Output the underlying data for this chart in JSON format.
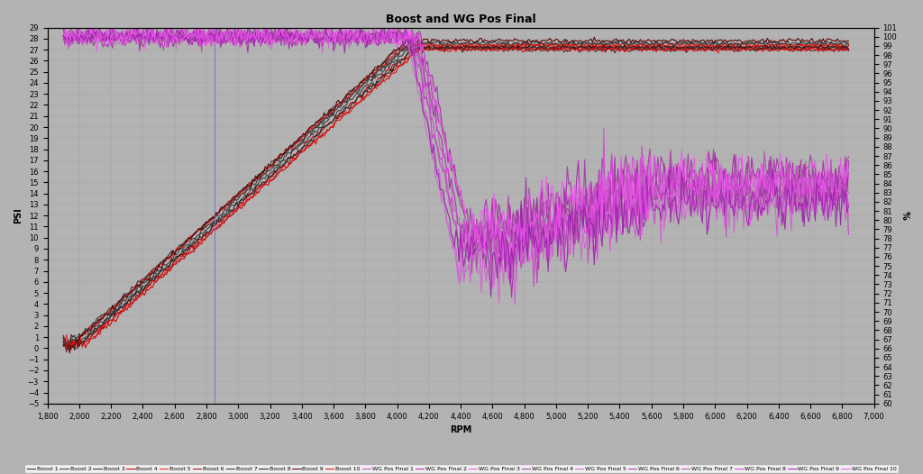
{
  "title": "Boost and WG Pos Final",
  "xlabel": "RPM",
  "ylabel_left": "PSI",
  "ylabel_right": "%",
  "xlim": [
    1800,
    7000
  ],
  "ylim_left": [
    -5,
    29
  ],
  "ylim_right": [
    60,
    101
  ],
  "x_ticks": [
    1800,
    2000,
    2200,
    2400,
    2600,
    2800,
    3000,
    3200,
    3400,
    3600,
    3800,
    4000,
    4200,
    4400,
    4600,
    4800,
    5000,
    5200,
    5400,
    5600,
    5800,
    6000,
    6200,
    6400,
    6600,
    6800,
    7000
  ],
  "background_color": "#b3b3b3",
  "boost_colors": [
    "#2a2a2a",
    "#3a3a3a",
    "#4a2a2a",
    "#cc0000",
    "#ee2222",
    "#aa0000",
    "#383838",
    "#222222",
    "#550000",
    "#dd1111"
  ],
  "wgdc_colors": [
    "#cc44cc",
    "#aa22aa",
    "#dd55dd",
    "#993399",
    "#cc66cc",
    "#aa33aa",
    "#bb44bb",
    "#dd44dd",
    "#9922aa",
    "#ee55ee"
  ],
  "vline_x": 2850,
  "vline_color": "#7070bb"
}
